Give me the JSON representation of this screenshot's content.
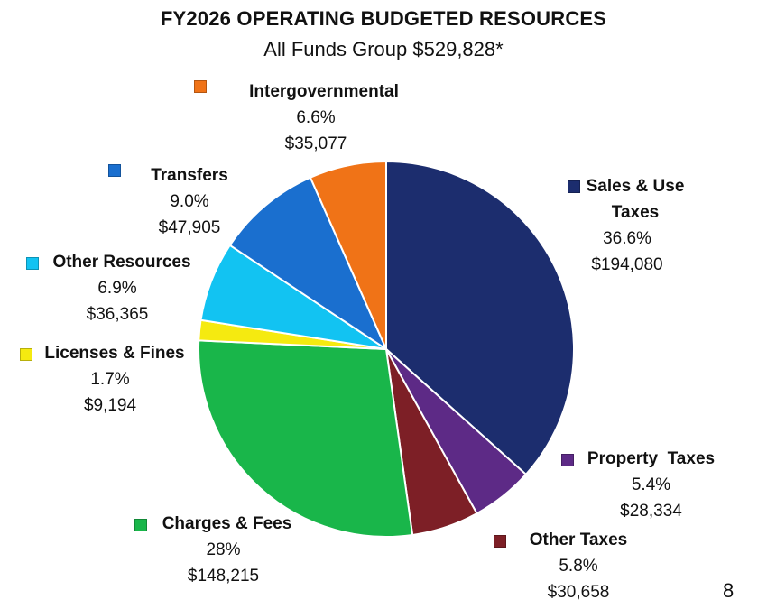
{
  "chart_data": {
    "type": "pie",
    "title": "FY2026 OPERATING BUDGETED RESOURCES",
    "subtitle": "All Funds Group $529,828*",
    "slices": [
      {
        "name": "Sales & Use Taxes",
        "percent_label": "36.6%",
        "amount_label": "$194,080",
        "value": 194080,
        "color": "#1c2d6e"
      },
      {
        "name": "Property  Taxes",
        "percent_label": "5.4%",
        "amount_label": "$28,334",
        "value": 28334,
        "color": "#5d2a86"
      },
      {
        "name": "Other Taxes",
        "percent_label": "5.8%",
        "amount_label": "$30,658",
        "value": 30658,
        "color": "#7d1f26"
      },
      {
        "name": "Charges & Fees",
        "percent_label": "28%",
        "amount_label": "$148,215",
        "value": 148215,
        "color": "#19b64a"
      },
      {
        "name": "Licenses & Fines",
        "percent_label": "1.7%",
        "amount_label": "$9,194",
        "value": 9194,
        "color": "#f5ea10"
      },
      {
        "name": "Other Resources",
        "percent_label": "6.9%",
        "amount_label": "$36,365",
        "value": 36365,
        "color": "#12c3f2"
      },
      {
        "name": "Transfers",
        "percent_label": "9.0%",
        "amount_label": "$47,905",
        "value": 47905,
        "color": "#1a6fcf"
      },
      {
        "name": "Intergovernmental",
        "percent_label": "6.6%",
        "amount_label": "$35,077",
        "value": 35077,
        "color": "#f07317"
      }
    ]
  },
  "page_number": "8"
}
